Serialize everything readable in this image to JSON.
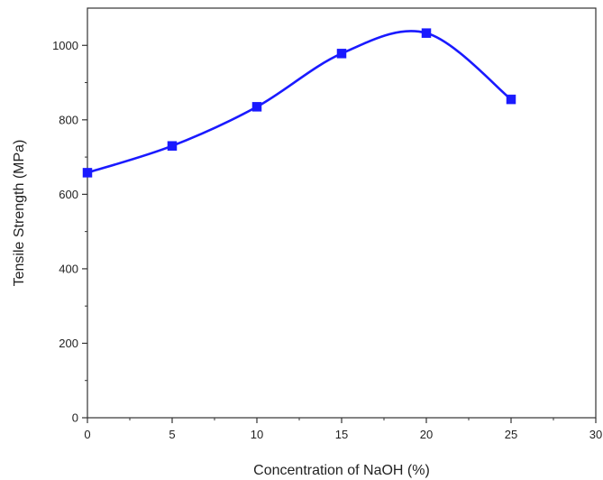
{
  "chart_data": {
    "type": "line",
    "title": "",
    "xlabel": "Concentration of NaOH (%)",
    "ylabel": "Tensile Strength (MPa)",
    "xlim": [
      0,
      30
    ],
    "ylim": [
      0,
      1100
    ],
    "xticks": [
      0,
      5,
      10,
      15,
      20,
      25,
      30
    ],
    "yticks": [
      0,
      200,
      400,
      600,
      800,
      1000
    ],
    "grid": false,
    "legend": "none",
    "series": [
      {
        "x": [
          0,
          5,
          10,
          15,
          20,
          25
        ],
        "y": [
          658,
          730,
          835,
          978,
          1033,
          855
        ],
        "color": "#1a1aff",
        "marker": "square",
        "smooth": true
      }
    ]
  }
}
